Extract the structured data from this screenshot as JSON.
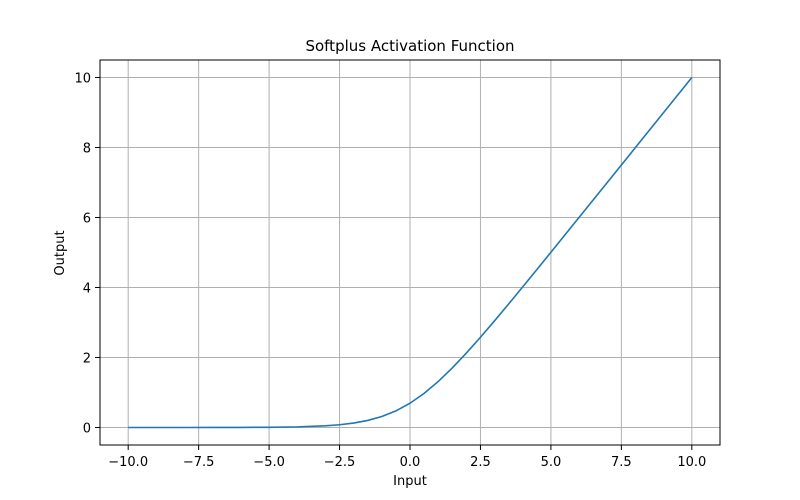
{
  "chart_data": {
    "type": "line",
    "title": "Softplus Activation Function",
    "xlabel": "Input",
    "ylabel": "Output",
    "xlim": [
      -11,
      11
    ],
    "ylim": [
      -0.5,
      10.5
    ],
    "xticks": [
      -10,
      -7.5,
      -5,
      -2.5,
      0,
      2.5,
      5,
      7.5,
      10
    ],
    "xtick_labels": [
      "−10.0",
      "−7.5",
      "−5.0",
      "−2.5",
      "0.0",
      "2.5",
      "5.0",
      "7.5",
      "10.0"
    ],
    "yticks": [
      0,
      2,
      4,
      6,
      8,
      10
    ],
    "ytick_labels": [
      "0",
      "2",
      "4",
      "6",
      "8",
      "10"
    ],
    "grid": true,
    "series": [
      {
        "color": "#1f77b4",
        "x": [
          -10,
          -9,
          -8,
          -7,
          -6,
          -5,
          -4,
          -3,
          -2.5,
          -2,
          -1.5,
          -1,
          -0.5,
          0,
          0.5,
          1,
          1.5,
          2,
          2.5,
          3,
          3.5,
          4,
          4.5,
          5,
          6,
          7,
          8,
          9,
          10
        ],
        "y": [
          5e-05,
          0.00012,
          0.00034,
          0.00091,
          0.00248,
          0.0067,
          0.0181,
          0.0486,
          0.0789,
          0.1269,
          0.2014,
          0.3133,
          0.4741,
          0.6931,
          0.9741,
          1.3133,
          1.7014,
          2.1269,
          2.5789,
          3.0486,
          3.5297,
          4.0181,
          4.5111,
          5.0067,
          6.0025,
          7.0009,
          8.0003,
          9.0001,
          10.0
        ]
      }
    ]
  }
}
